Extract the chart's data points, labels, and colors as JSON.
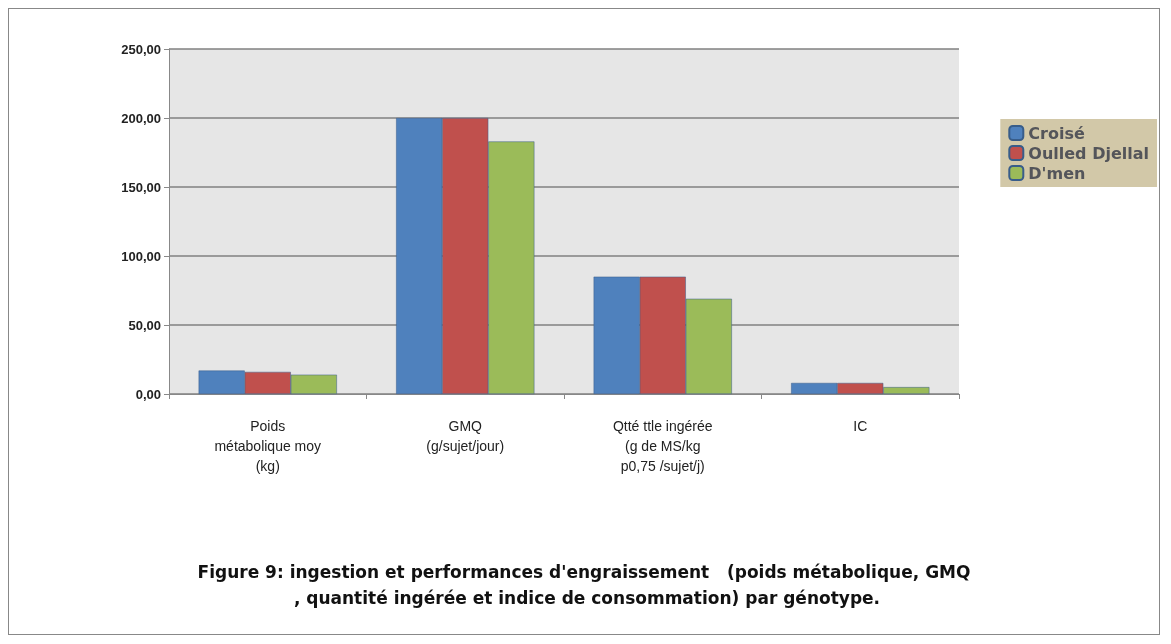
{
  "chart_data": {
    "type": "bar",
    "title": "Figure 9: ingestion et performances d'engraissement   (poids métabolique, GMQ , quantité ingérée et indice de consommation) par génotype.",
    "categories": [
      "Poids\nmétabolique moy\n(kg)",
      "GMQ\n(g/sujet/jour)",
      "Qtté ttle ingérée\n(g de MS/kg\np0,75 /sujet/j)",
      "IC"
    ],
    "series": [
      {
        "name": "Croisé",
        "color": "#4f81bd",
        "values": [
          17,
          200,
          85,
          8
        ]
      },
      {
        "name": "Oulled Djellal",
        "color": "#c0504d",
        "values": [
          16,
          200,
          85,
          8
        ]
      },
      {
        "name": "D'men",
        "color": "#9bbb59",
        "values": [
          14,
          183,
          69,
          5
        ]
      }
    ],
    "ylim": [
      0,
      250
    ],
    "yticks": [
      {
        "value": 0,
        "label": "0,00"
      },
      {
        "value": 50,
        "label": "50,00"
      },
      {
        "value": 100,
        "label": "100,00"
      },
      {
        "value": 150,
        "label": "150,00"
      },
      {
        "value": 200,
        "label": "200,00"
      },
      {
        "value": 250,
        "label": "250,00"
      }
    ],
    "grid": "y",
    "legend": "right"
  }
}
